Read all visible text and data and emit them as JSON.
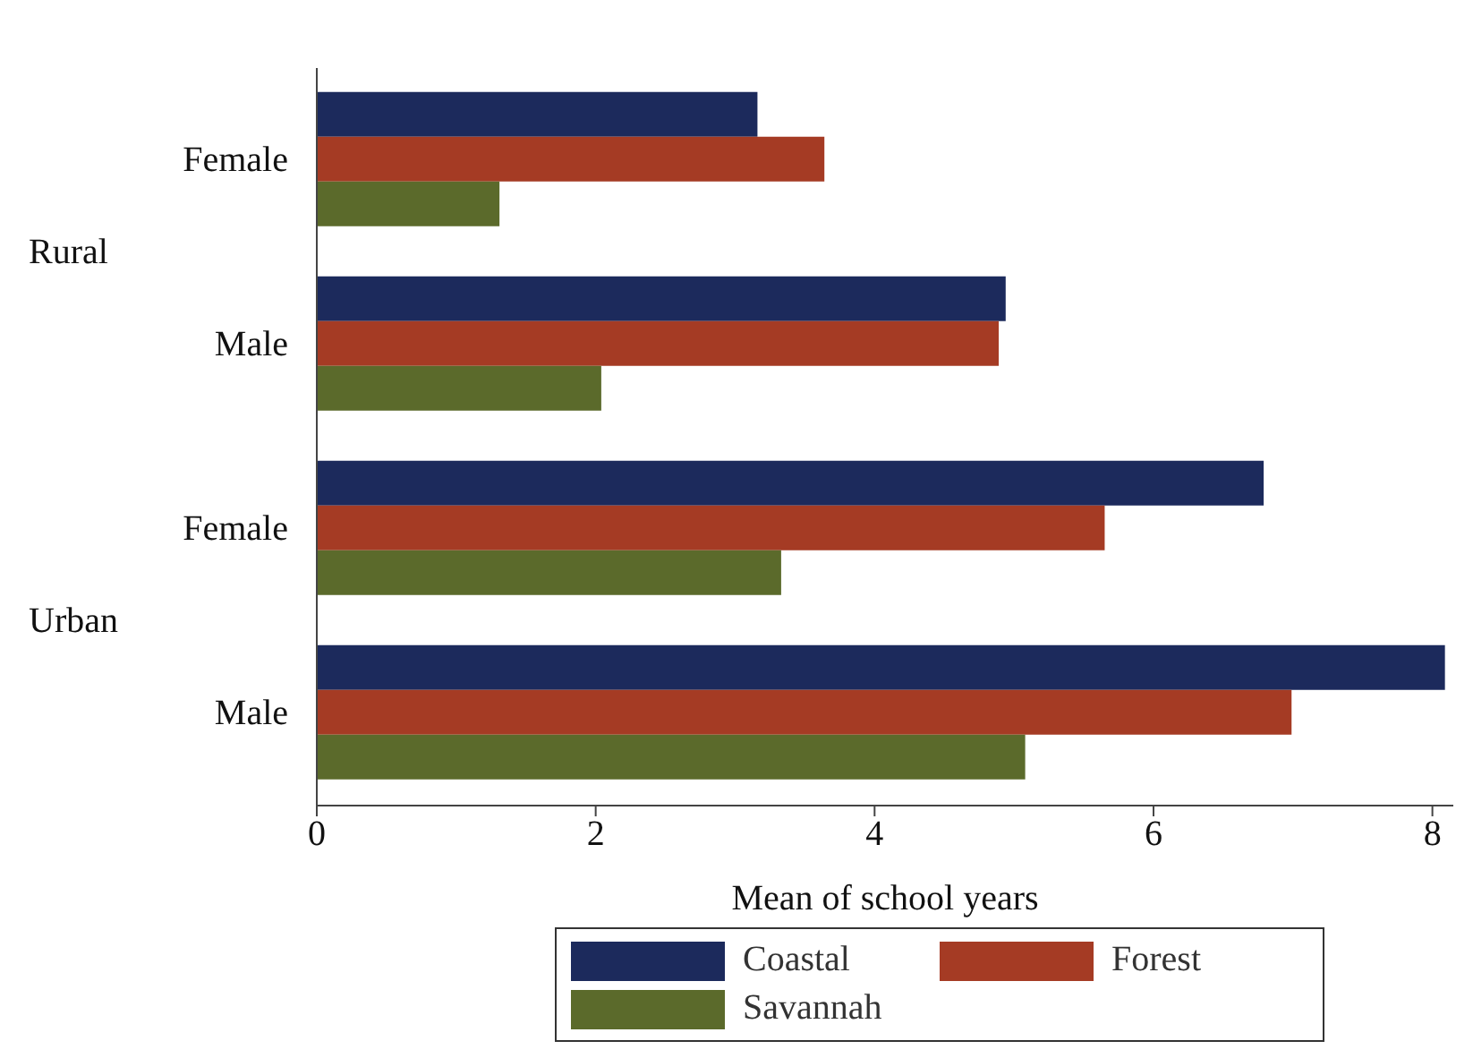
{
  "chart_data": {
    "type": "bar",
    "orientation": "horizontal",
    "xlabel": "Mean of school years",
    "categories": [
      "Female",
      "Male",
      "Female",
      "Male"
    ],
    "annotations": [
      "Rural",
      "Urban"
    ],
    "series": [
      {
        "name": "Coastal",
        "color": "#1c2a5c",
        "values": [
          3.16,
          4.94,
          6.79,
          8.09
        ]
      },
      {
        "name": "Forest",
        "color": "#a53b24",
        "values": [
          3.64,
          4.89,
          5.65,
          6.99
        ]
      },
      {
        "name": "Savannah",
        "color": "#5b6a2b",
        "values": [
          1.31,
          2.04,
          3.33,
          5.08
        ]
      }
    ],
    "xlim": [
      0,
      8.15
    ],
    "xticks": [
      0,
      2,
      4,
      6,
      8
    ],
    "legend": "bottom"
  }
}
